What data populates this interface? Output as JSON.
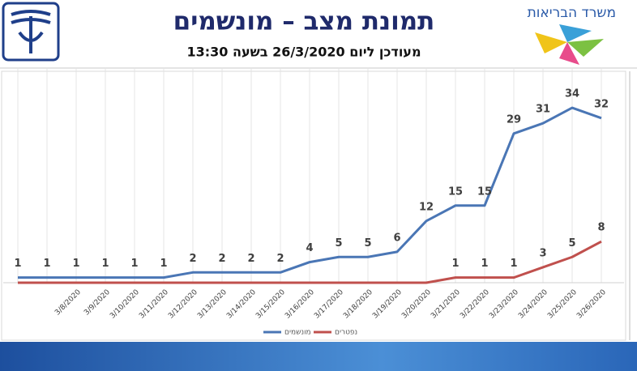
{
  "header": {
    "title": "תמונת מצב – מונשמים",
    "subtitle": "מעודכן ליום 26/3/2020 בשעה 13:30",
    "logo_text": "משרד הבריאות"
  },
  "chart_data": {
    "type": "line",
    "categories": [
      null,
      null,
      "3/8/2020",
      "3/9/2020",
      "3/10/2020",
      "3/11/2020",
      "3/12/2020",
      "3/13/2020",
      "3/14/2020",
      "3/15/2020",
      "3/16/2020",
      "3/17/2020",
      "3/18/2020",
      "3/19/2020",
      "3/20/2020",
      "3/21/2020",
      "3/22/2020",
      "3/23/2020",
      "3/24/2020",
      "3/25/2020",
      "3/26/2020"
    ],
    "series": [
      {
        "name": "מונשמים",
        "color": "#4a76b5",
        "values": [
          1,
          1,
          1,
          1,
          1,
          1,
          2,
          2,
          2,
          2,
          4,
          5,
          5,
          6,
          12,
          15,
          15,
          29,
          31,
          34,
          32
        ],
        "value_labels": [
          "1",
          "1",
          "1",
          "1",
          "1",
          "1",
          "2",
          "2",
          "2",
          "2",
          "4",
          "5",
          "5",
          "6",
          "12",
          "15",
          "15",
          "29",
          "31",
          "34",
          "32"
        ]
      },
      {
        "name": "נפטרים",
        "color": "#c0504d",
        "values": [
          0,
          0,
          0,
          0,
          0,
          0,
          0,
          0,
          0,
          0,
          0,
          0,
          0,
          0,
          0,
          1,
          1,
          1,
          3,
          5,
          8
        ],
        "value_labels": [
          null,
          null,
          null,
          null,
          null,
          null,
          null,
          null,
          null,
          null,
          null,
          null,
          null,
          null,
          null,
          "1",
          "1",
          "1",
          "3",
          "5",
          "8"
        ]
      }
    ],
    "ylim": [
      0,
      40
    ],
    "grid": "x",
    "legend": "bottom"
  }
}
